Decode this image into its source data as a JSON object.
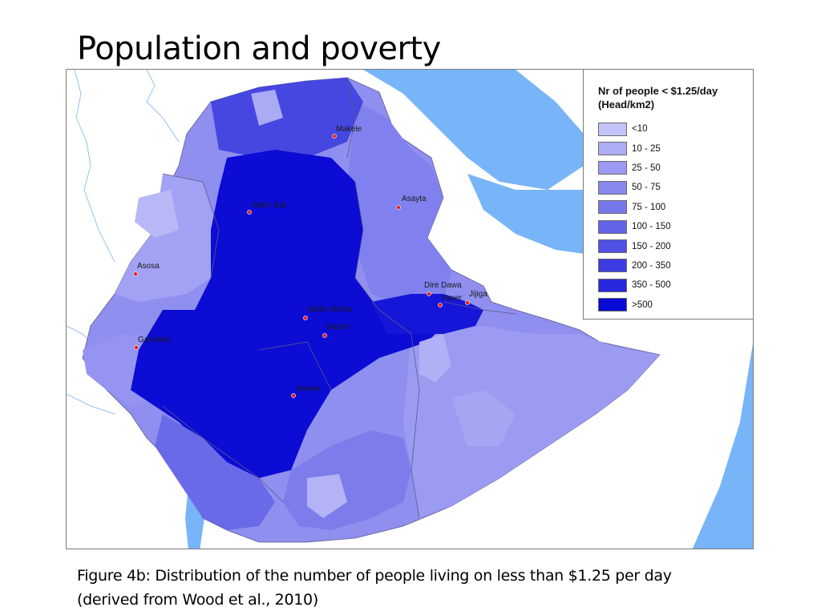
{
  "title": "Population and poverty",
  "legend": {
    "title": "Nr of people < $1.25/day (Head/km2)",
    "items": [
      {
        "label": "<10",
        "color": "#c3c3f9"
      },
      {
        "label": "10 - 25",
        "color": "#adadf5"
      },
      {
        "label": "25 - 50",
        "color": "#9a9af2"
      },
      {
        "label": "50 - 75",
        "color": "#8888ee"
      },
      {
        "label": "75 - 100",
        "color": "#7777ec"
      },
      {
        "label": "100 - 150",
        "color": "#6464e8"
      },
      {
        "label": "150 - 200",
        "color": "#5050e4"
      },
      {
        "label": "200 - 350",
        "color": "#3c3ce2"
      },
      {
        "label": "350 - 500",
        "color": "#2828dc"
      },
      {
        "label": ">500",
        "color": "#0a0ad6"
      }
    ]
  },
  "cities": [
    {
      "name": "Makele"
    },
    {
      "name": "Bahir Dar"
    },
    {
      "name": "Asayta"
    },
    {
      "name": "Asosa"
    },
    {
      "name": "Dire Dawa"
    },
    {
      "name": "Harer"
    },
    {
      "name": "Jijiga"
    },
    {
      "name": "Addis Abeba"
    },
    {
      "name": "Nazret"
    },
    {
      "name": "Gambela"
    },
    {
      "name": "Awasa"
    }
  ],
  "colors": {
    "water": "#78b4f8",
    "city_marker": "#e02020",
    "border": "#5a5a8a"
  },
  "caption_line1": "Figure  4b: Distribution of the number of people living on less than $1.25 per day",
  "caption_line2": "(derived from Wood et al., 2010)"
}
